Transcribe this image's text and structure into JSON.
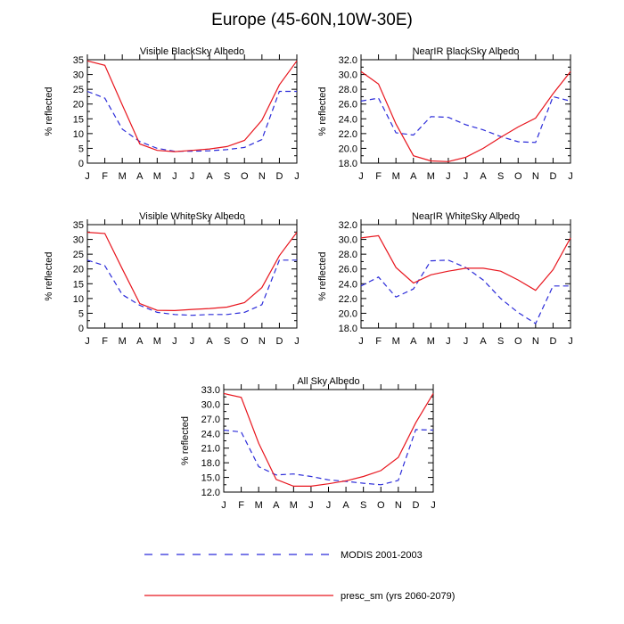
{
  "figure": {
    "title": "Europe (45-60N,10W-30E)"
  },
  "colors": {
    "modis": "#2b2bd9",
    "presc": "#e8161e"
  },
  "legend": {
    "items": [
      {
        "key": "modis",
        "label": "MODIS 2001-2003",
        "dash": true
      },
      {
        "key": "presc",
        "label": "presc_sm (yrs 2060-2079)",
        "dash": false
      }
    ]
  },
  "chart_data": [
    {
      "type": "line",
      "title": "Visible BlackSky Albedo",
      "ylabel": "% reflected",
      "x": [
        "J",
        "F",
        "M",
        "A",
        "M",
        "J",
        "J",
        "A",
        "S",
        "O",
        "N",
        "D",
        "J"
      ],
      "ylim": [
        0,
        35
      ],
      "yticks": [
        "0",
        "5",
        "10",
        "15",
        "20",
        "25",
        "30",
        "35"
      ],
      "series": [
        {
          "name": "MODIS 2001-2003",
          "key": "modis",
          "values": [
            24.3,
            22.0,
            11.5,
            7.3,
            5.0,
            4.0,
            4.0,
            4.2,
            4.6,
            5.3,
            8.0,
            24.3,
            24.3
          ]
        },
        {
          "name": "presc_sm (yrs 2060-2079)",
          "key": "presc",
          "values": [
            34.6,
            33.1,
            19.7,
            6.5,
            4.3,
            3.9,
            4.3,
            4.8,
            5.6,
            7.7,
            14.5,
            26.5,
            34.6
          ]
        }
      ]
    },
    {
      "type": "line",
      "title": "NearIR BlackSky Albedo",
      "ylabel": "% reflected",
      "x": [
        "J",
        "F",
        "M",
        "A",
        "M",
        "J",
        "J",
        "A",
        "S",
        "O",
        "N",
        "D",
        "J"
      ],
      "ylim": [
        18,
        32
      ],
      "yticks": [
        "18.0",
        "20.0",
        "22.0",
        "24.0",
        "26.0",
        "28.0",
        "30.0",
        "32.0"
      ],
      "series": [
        {
          "name": "MODIS 2001-2003",
          "key": "modis",
          "values": [
            26.4,
            26.8,
            22.1,
            21.8,
            24.3,
            24.2,
            23.2,
            22.5,
            21.6,
            20.9,
            20.8,
            27.0,
            26.4
          ]
        },
        {
          "name": "presc_sm (yrs 2060-2079)",
          "key": "presc",
          "values": [
            30.4,
            28.7,
            23.3,
            19.0,
            18.3,
            18.2,
            18.8,
            20.0,
            21.5,
            22.9,
            24.1,
            27.4,
            30.4
          ]
        }
      ]
    },
    {
      "type": "line",
      "title": "Visible WhiteSky Albedo",
      "ylabel": "% reflected",
      "x": [
        "J",
        "F",
        "M",
        "A",
        "M",
        "J",
        "J",
        "A",
        "S",
        "O",
        "N",
        "D",
        "J"
      ],
      "ylim": [
        0,
        35
      ],
      "yticks": [
        "0",
        "5",
        "10",
        "15",
        "20",
        "25",
        "30",
        "35"
      ],
      "series": [
        {
          "name": "MODIS 2001-2003",
          "key": "modis",
          "values": [
            23.0,
            21.1,
            11.3,
            7.7,
            5.3,
            4.6,
            4.3,
            4.6,
            4.6,
            5.3,
            7.9,
            23.0,
            23.0
          ]
        },
        {
          "name": "presc_sm (yrs 2060-2079)",
          "key": "presc",
          "values": [
            32.4,
            32.0,
            20.0,
            8.3,
            6.0,
            5.9,
            6.3,
            6.6,
            7.1,
            8.6,
            13.7,
            24.5,
            32.4
          ]
        }
      ]
    },
    {
      "type": "line",
      "title": "NearIR WhiteSky Albedo",
      "ylabel": "% reflected",
      "x": [
        "J",
        "F",
        "M",
        "A",
        "M",
        "J",
        "J",
        "A",
        "S",
        "O",
        "N",
        "D",
        "J"
      ],
      "ylim": [
        18,
        32
      ],
      "yticks": [
        "18.0",
        "20.0",
        "22.0",
        "24.0",
        "26.0",
        "28.0",
        "30.0",
        "32.0"
      ],
      "series": [
        {
          "name": "MODIS 2001-2003",
          "key": "modis",
          "values": [
            23.7,
            24.9,
            22.2,
            23.3,
            27.1,
            27.2,
            26.2,
            24.5,
            22.0,
            20.1,
            18.6,
            23.7,
            23.7
          ]
        },
        {
          "name": "presc_sm (yrs 2060-2079)",
          "key": "presc",
          "values": [
            30.2,
            30.5,
            26.2,
            24.1,
            25.2,
            25.7,
            26.1,
            26.1,
            25.7,
            24.5,
            23.1,
            25.9,
            30.2
          ]
        }
      ]
    },
    {
      "type": "line",
      "title": "All Sky Albedo",
      "ylabel": "% reflected",
      "x": [
        "J",
        "F",
        "M",
        "A",
        "M",
        "J",
        "J",
        "A",
        "S",
        "O",
        "N",
        "D",
        "J"
      ],
      "ylim": [
        12,
        33
      ],
      "yticks": [
        "12.0",
        "15.0",
        "18.0",
        "21.0",
        "24.0",
        "27.0",
        "30.0",
        "33.0"
      ],
      "series": [
        {
          "name": "MODIS 2001-2003",
          "key": "modis",
          "values": [
            24.7,
            24.3,
            17.2,
            15.5,
            15.7,
            15.2,
            14.5,
            14.2,
            13.8,
            13.5,
            14.4,
            24.8,
            24.7
          ]
        },
        {
          "name": "presc_sm (yrs 2060-2079)",
          "key": "presc",
          "values": [
            32.2,
            31.4,
            22.0,
            14.6,
            13.2,
            13.2,
            13.7,
            14.3,
            15.2,
            16.4,
            19.1,
            26.2,
            32.2
          ]
        }
      ]
    }
  ]
}
